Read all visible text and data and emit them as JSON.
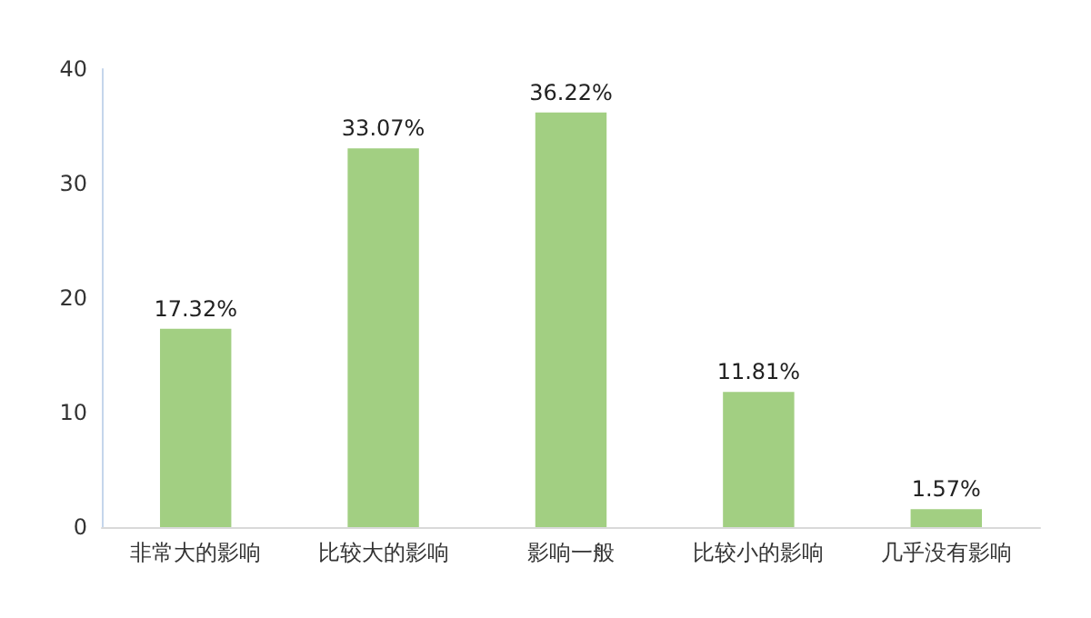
{
  "chart_data": {
    "type": "bar",
    "categories": [
      "非常大的影响",
      "比较大的影响",
      "影响一般",
      "比较小的影响",
      "几乎没有影响"
    ],
    "values": [
      17.32,
      33.07,
      36.22,
      11.81,
      1.57
    ],
    "value_labels": [
      "17.32%",
      "33.07%",
      "36.22%",
      "11.81%",
      "1.57%"
    ],
    "color": "#a2cf82",
    "ylim": [
      0,
      40
    ],
    "yticks": [
      0,
      10,
      20,
      30,
      40
    ],
    "grid": false
  }
}
